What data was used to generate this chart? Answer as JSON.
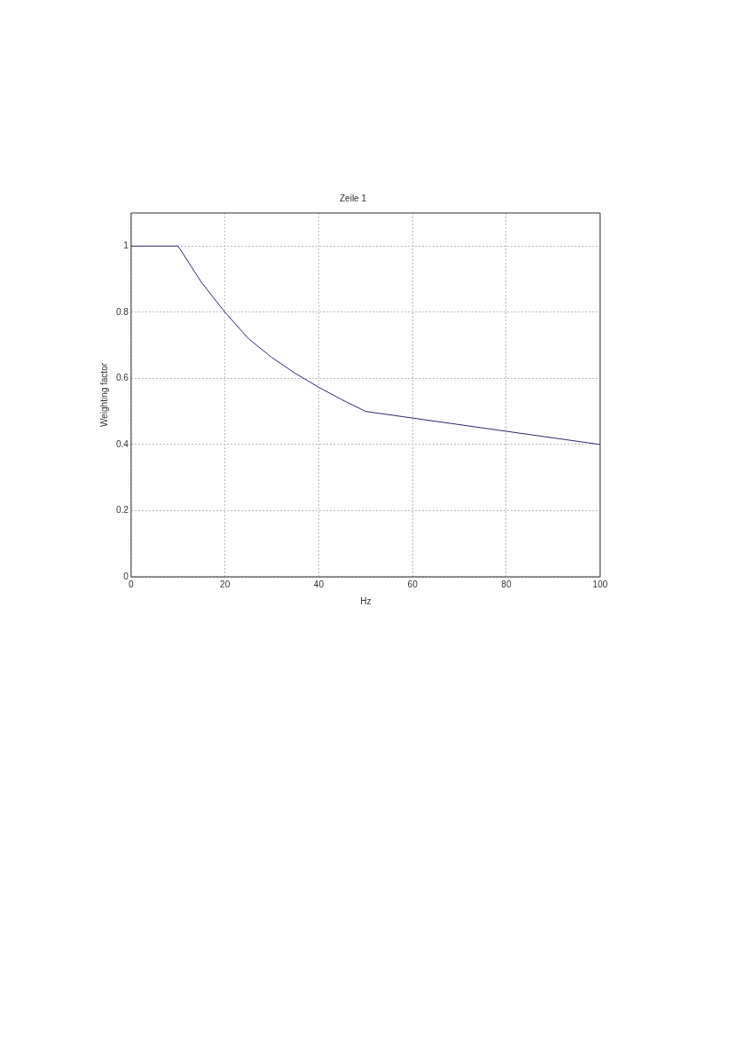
{
  "chart_data": {
    "type": "line",
    "title": "Zeile 1",
    "xlabel": "Hz",
    "ylabel": "Weighting factor",
    "series": [
      {
        "color": "#2a2a6a",
        "x": [
          0,
          10,
          15,
          20,
          25,
          30,
          35,
          40,
          45,
          50,
          60,
          70,
          80,
          90,
          100
        ],
        "values": [
          1,
          1,
          0.89,
          0.8,
          0.72,
          0.663,
          0.615,
          0.573,
          0.535,
          0.5,
          0.48,
          0.46,
          0.44,
          0.42,
          0.4
        ]
      }
    ],
    "xlim": [
      0,
      100
    ],
    "xticks": [
      0,
      20,
      40,
      60,
      80,
      100
    ],
    "ylim": [
      0,
      1.1
    ],
    "yticks": [
      0,
      0.2,
      0.4,
      0.6,
      0.8,
      1
    ],
    "grid": true,
    "legend": false,
    "marker": "none",
    "line_style": "solid"
  }
}
